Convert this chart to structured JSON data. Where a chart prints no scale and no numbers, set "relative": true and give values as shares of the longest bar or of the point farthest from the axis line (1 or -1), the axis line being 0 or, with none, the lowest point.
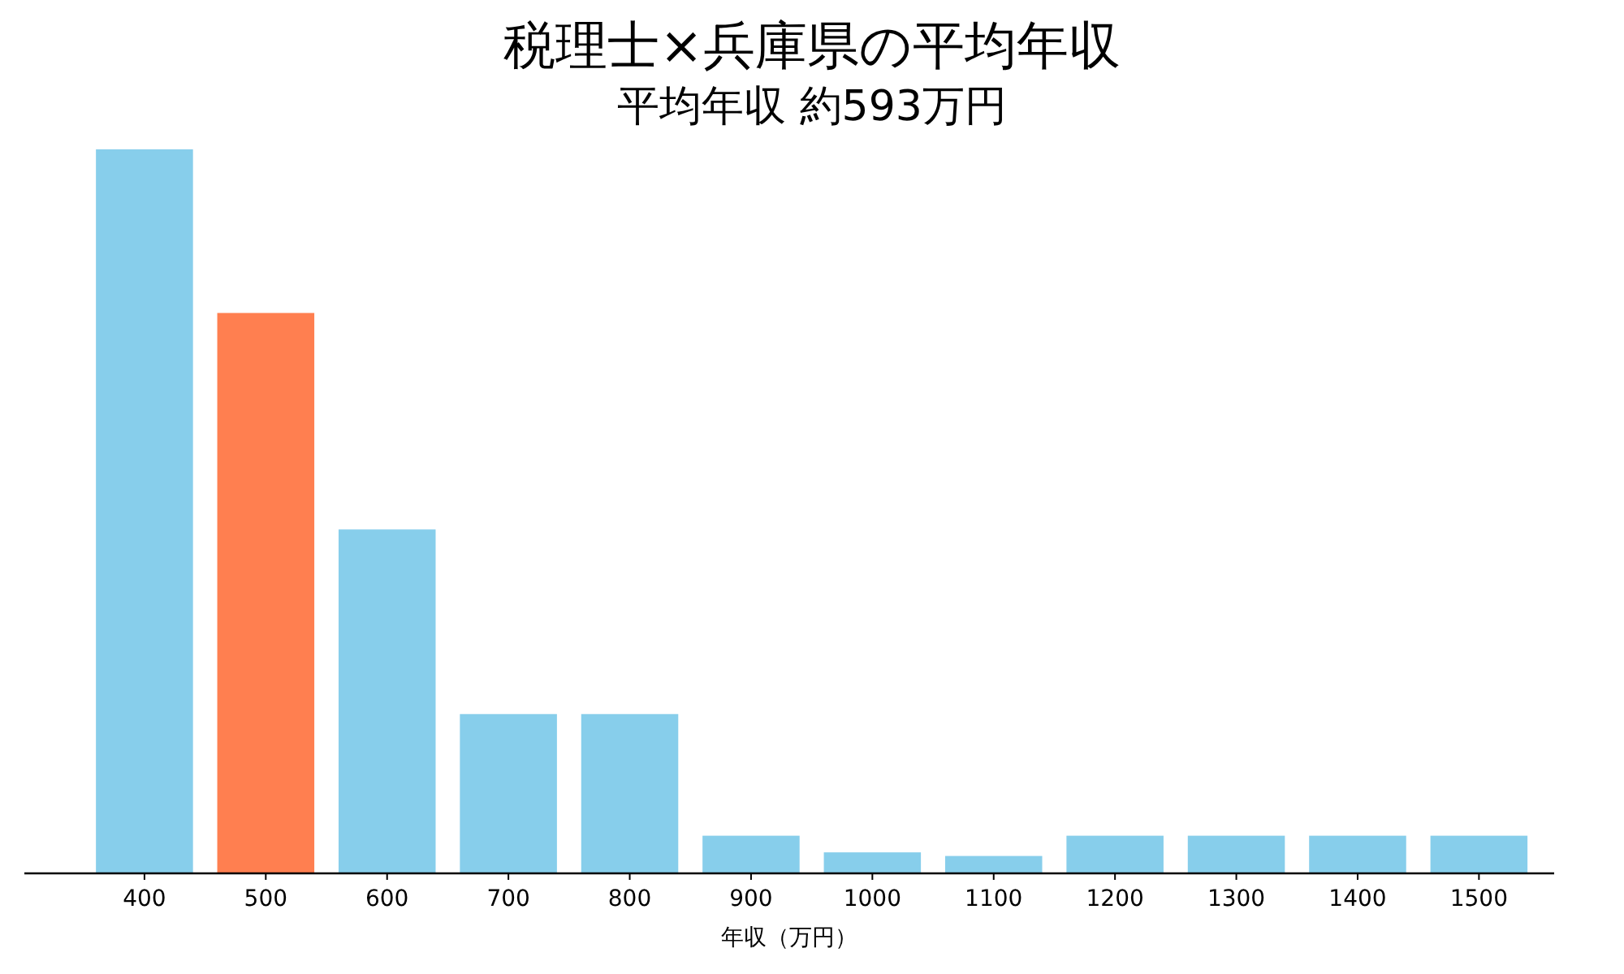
{
  "chart_data": {
    "type": "bar",
    "title": "税理士×兵庫県の平均年収",
    "subtitle": "平均年収 約593万円",
    "xlabel": "年収（万円）",
    "categories": [
      "400",
      "500",
      "600",
      "700",
      "800",
      "900",
      "1000",
      "1100",
      "1200",
      "1300",
      "1400",
      "1500"
    ],
    "values": [
      1,
      0.774,
      0.475,
      0.22,
      0.22,
      0.052,
      0.029,
      0.024,
      0.052,
      0.052,
      0.052,
      0.052
    ],
    "colors": [
      "#87ceeb",
      "#ff7f50",
      "#87ceeb",
      "#87ceeb",
      "#87ceeb",
      "#87ceeb",
      "#87ceeb",
      "#87ceeb",
      "#87ceeb",
      "#87ceeb",
      "#87ceeb",
      "#87ceeb"
    ],
    "relative": true
  }
}
